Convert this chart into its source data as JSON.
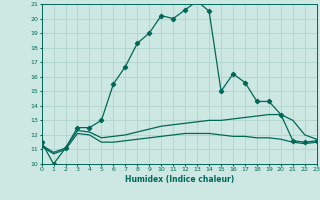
{
  "xlabel": "Humidex (Indice chaleur)",
  "ylabel": "",
  "background_color": "#cde8e2",
  "grid_color": "#aad0c8",
  "line_color": "#006858",
  "xmin": 0,
  "xmax": 23,
  "ymin": 10,
  "ymax": 21,
  "yticks": [
    10,
    11,
    12,
    13,
    14,
    15,
    16,
    17,
    18,
    19,
    20,
    21
  ],
  "xticks": [
    0,
    1,
    2,
    3,
    4,
    5,
    6,
    7,
    8,
    9,
    10,
    11,
    12,
    13,
    14,
    15,
    16,
    17,
    18,
    19,
    20,
    21,
    22,
    23
  ],
  "series1_x": [
    0,
    1,
    2,
    3,
    4,
    5,
    6,
    7,
    8,
    9,
    10,
    11,
    12,
    13,
    14,
    15,
    16,
    17,
    18,
    19,
    20,
    21,
    22,
    23
  ],
  "series1_y": [
    11.5,
    10.0,
    11.1,
    12.5,
    12.5,
    13.0,
    15.5,
    16.7,
    18.3,
    19.0,
    20.2,
    20.0,
    20.6,
    21.2,
    20.5,
    15.0,
    16.2,
    15.6,
    14.3,
    14.3,
    13.4,
    11.6,
    11.5,
    11.6
  ],
  "series2_x": [
    0,
    1,
    2,
    3,
    4,
    5,
    6,
    7,
    8,
    9,
    10,
    11,
    12,
    13,
    14,
    15,
    16,
    17,
    18,
    19,
    20,
    21,
    22,
    23
  ],
  "series2_y": [
    11.3,
    10.8,
    11.1,
    12.3,
    12.2,
    11.8,
    11.9,
    12.0,
    12.2,
    12.4,
    12.6,
    12.7,
    12.8,
    12.9,
    13.0,
    13.0,
    13.1,
    13.2,
    13.3,
    13.4,
    13.4,
    13.0,
    12.0,
    11.7
  ],
  "series3_x": [
    0,
    1,
    2,
    3,
    4,
    5,
    6,
    7,
    8,
    9,
    10,
    11,
    12,
    13,
    14,
    15,
    16,
    17,
    18,
    19,
    20,
    21,
    22,
    23
  ],
  "series3_y": [
    11.2,
    10.7,
    11.0,
    12.1,
    12.0,
    11.5,
    11.5,
    11.6,
    11.7,
    11.8,
    11.9,
    12.0,
    12.1,
    12.1,
    12.1,
    12.0,
    11.9,
    11.9,
    11.8,
    11.8,
    11.7,
    11.5,
    11.4,
    11.5
  ]
}
